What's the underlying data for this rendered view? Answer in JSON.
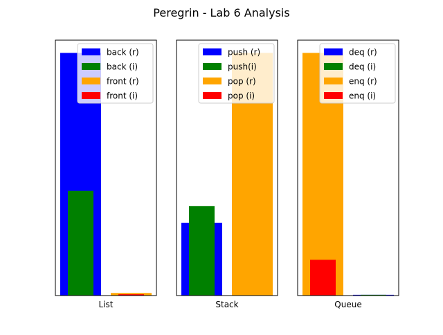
{
  "figure": {
    "suptitle": "Peregrin - Lab 6 Analysis"
  },
  "chart_data": [
    {
      "type": "bar",
      "xlabel": "List",
      "yticks_visible": false,
      "ylim": [
        0,
        1.0
      ],
      "legend_placement": "upper right",
      "series": [
        {
          "name": "back (r)",
          "color": "#0000ff",
          "values": [
            0.95,
            0.0
          ]
        },
        {
          "name": "back (i)",
          "color": "#008000",
          "values": [
            0.41,
            0.0
          ]
        },
        {
          "name": "front (r)",
          "color": "#ffa500",
          "values": [
            0.0,
            0.01
          ]
        },
        {
          "name": "front (i)",
          "color": "#ff0000",
          "values": [
            0.0,
            0.005
          ]
        }
      ]
    },
    {
      "type": "bar",
      "xlabel": "Stack",
      "yticks_visible": false,
      "ylim": [
        0,
        1.0
      ],
      "legend_placement": "upper right",
      "series": [
        {
          "name": "push (r)",
          "color": "#0000ff",
          "values": [
            0.285,
            0.0
          ]
        },
        {
          "name": "push(i)",
          "color": "#008000",
          "values": [
            0.35,
            0.0
          ]
        },
        {
          "name": "pop (r)",
          "color": "#ffa500",
          "values": [
            0.0,
            0.95
          ]
        },
        {
          "name": "pop (i)",
          "color": "#ff0000",
          "values": [
            0.0,
            0.0
          ]
        }
      ]
    },
    {
      "type": "bar",
      "xlabel": "Queue",
      "yticks_visible": false,
      "ylim": [
        0,
        1.0
      ],
      "legend_placement": "upper right",
      "series": [
        {
          "name": "deq (r)",
          "color": "#0000ff",
          "values": [
            0.0,
            0.003
          ]
        },
        {
          "name": "deq (i)",
          "color": "#008000",
          "values": [
            0.0,
            0.003
          ]
        },
        {
          "name": "enq (r)",
          "color": "#ffa500",
          "values": [
            0.95,
            0.0
          ]
        },
        {
          "name": "enq (i)",
          "color": "#ff0000",
          "values": [
            0.14,
            0.0
          ]
        }
      ]
    }
  ]
}
